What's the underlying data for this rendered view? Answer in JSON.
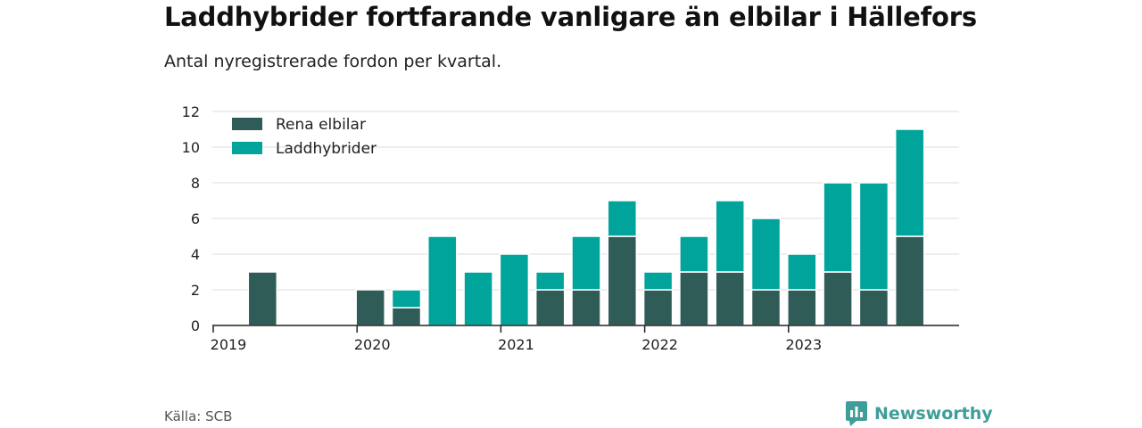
{
  "title": "Laddhybrider fortfarande vanligare än elbilar i Hällefors",
  "subtitle": "Antal nyregistrerade fordon per kvartal.",
  "source": "Källa: SCB",
  "brand": "Newsworthy",
  "chart_data": {
    "type": "bar",
    "stacked": true,
    "categories": [
      "2019 Q1",
      "2019 Q2",
      "2019 Q3",
      "2019 Q4",
      "2020 Q1",
      "2020 Q2",
      "2020 Q3",
      "2020 Q4",
      "2021 Q1",
      "2021 Q2",
      "2021 Q3",
      "2021 Q4",
      "2022 Q1",
      "2022 Q2",
      "2022 Q3",
      "2022 Q4",
      "2023 Q1",
      "2023 Q2",
      "2023 Q3",
      "2023 Q4"
    ],
    "series": [
      {
        "name": "Rena elbilar",
        "color": "#2f5c56",
        "values": [
          0,
          3,
          0,
          0,
          2,
          1,
          0,
          0,
          0,
          2,
          2,
          5,
          2,
          3,
          3,
          2,
          2,
          3,
          2,
          5
        ]
      },
      {
        "name": "Laddhybrider",
        "color": "#00a49a",
        "values": [
          0,
          0,
          0,
          0,
          0,
          1,
          5,
          3,
          4,
          1,
          3,
          2,
          1,
          2,
          4,
          4,
          2,
          5,
          6,
          6
        ]
      }
    ],
    "x_tick_labels": [
      "2019",
      "2020",
      "2021",
      "2022",
      "2023"
    ],
    "y_ticks": [
      0,
      2,
      4,
      6,
      8,
      10,
      12
    ],
    "ylim": [
      0,
      12
    ],
    "legend_position": "top-left",
    "grid": true
  }
}
